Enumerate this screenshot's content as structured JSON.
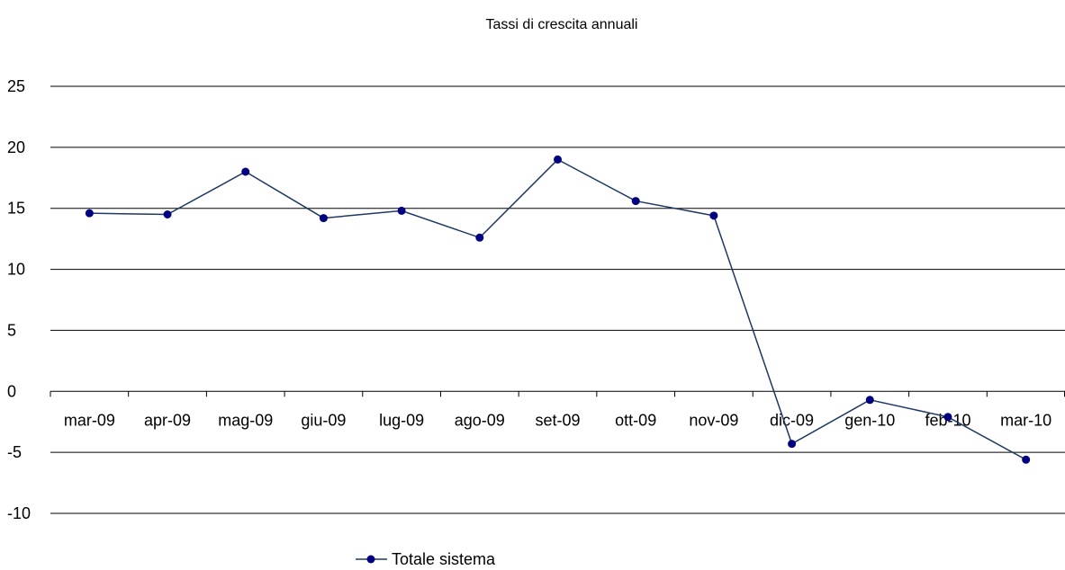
{
  "chart_data": {
    "type": "line",
    "title": "Tassi di crescita annuali",
    "xlabel": "",
    "ylabel": "",
    "categories": [
      "mar-09",
      "apr-09",
      "mag-09",
      "giu-09",
      "lug-09",
      "ago-09",
      "set-09",
      "ott-09",
      "nov-09",
      "dic-09",
      "gen-10",
      "feb-10",
      "mar-10"
    ],
    "series": [
      {
        "name": "Totale sistema",
        "color": "#000080",
        "line_color": "#1f3864",
        "values": [
          14.6,
          14.5,
          18.0,
          14.2,
          14.8,
          12.6,
          19.0,
          15.6,
          14.4,
          -4.3,
          -0.7,
          -2.1,
          -5.6
        ]
      }
    ],
    "ylim": [
      -10,
      25
    ],
    "yticks": [
      -10,
      -5,
      0,
      5,
      10,
      15,
      20,
      25
    ],
    "grid": true,
    "legend_position": "bottom"
  }
}
